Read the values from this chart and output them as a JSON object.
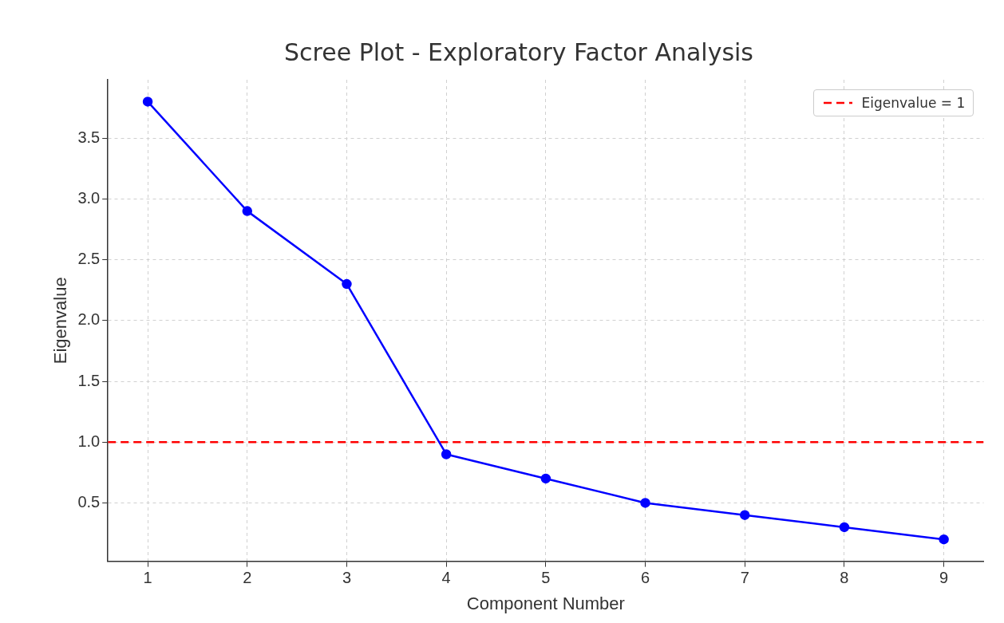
{
  "chart_data": {
    "type": "line",
    "title": "Scree Plot - Exploratory Factor Analysis",
    "xlabel": "Component Number",
    "ylabel": "Eigenvalue",
    "x": [
      1,
      2,
      3,
      4,
      5,
      6,
      7,
      8,
      9
    ],
    "series": [
      {
        "color": "#0000ff",
        "values": [
          3.8,
          2.9,
          2.3,
          0.9,
          0.7,
          0.5,
          0.4,
          0.3,
          0.2
        ]
      }
    ],
    "xlim": [
      0.6,
      9.4
    ],
    "xticks": [
      1,
      2,
      3,
      4,
      5,
      6,
      7,
      8,
      9
    ],
    "ylim": [
      0.02,
      3.98
    ],
    "yticks": [
      0.5,
      {
        "value": 1,
        "label": "1.0"
      },
      1.5,
      {
        "value": 2,
        "label": "2.0"
      },
      2.5,
      {
        "value": 3,
        "label": "3.0"
      },
      3.5
    ],
    "ref_lines": [
      {
        "axis": "y",
        "value": 1,
        "label": "Eigenvalue = 1",
        "color": "#ff0000",
        "line_style": "dashed"
      }
    ],
    "marker": "circle",
    "line_style": "solid",
    "grid": true,
    "legend": "top right"
  }
}
